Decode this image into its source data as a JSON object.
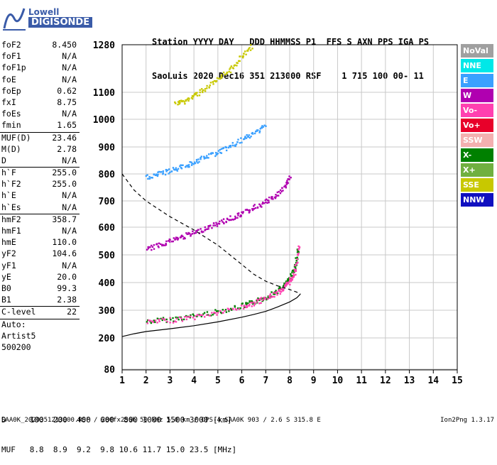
{
  "logo": {
    "line1": "Lowell",
    "line2": "DIGISONDE"
  },
  "header": {
    "line1": "Station YYYY DAY   DDD HHMMSS P1  FFS S AXN PPS IGA PS",
    "line2": "SaoLuis 2020 Dec16 351 213000 RSF    1 715 100 00- 11"
  },
  "params": [
    {
      "k": "foF2",
      "v": "8.450"
    },
    {
      "k": "foF1",
      "v": "N/A"
    },
    {
      "k": "foF1p",
      "v": "N/A"
    },
    {
      "k": "foE",
      "v": "N/A"
    },
    {
      "k": "foEp",
      "v": "0.62"
    },
    {
      "k": "fxI",
      "v": "8.75"
    },
    {
      "k": "foEs",
      "v": "N/A"
    },
    {
      "k": "fmin",
      "v": "1.65"
    },
    {
      "k": "MUF(D)",
      "v": "23.46",
      "sep": true
    },
    {
      "k": "M(D)",
      "v": "2.78"
    },
    {
      "k": "D",
      "v": "N/A"
    },
    {
      "k": "h`F",
      "v": "255.0",
      "sep": true
    },
    {
      "k": "h`F2",
      "v": "255.0"
    },
    {
      "k": "h`E",
      "v": "N/A"
    },
    {
      "k": "h`Es",
      "v": "N/A"
    },
    {
      "k": "hmF2",
      "v": "358.7",
      "sep": true
    },
    {
      "k": "hmF1",
      "v": "N/A"
    },
    {
      "k": "hmE",
      "v": "110.0"
    },
    {
      "k": "yF2",
      "v": "104.6"
    },
    {
      "k": "yF1",
      "v": "N/A"
    },
    {
      "k": "yE",
      "v": "20.0"
    },
    {
      "k": "B0",
      "v": "99.3"
    },
    {
      "k": "B1",
      "v": "2.38"
    },
    {
      "k": "C-level",
      "v": "22",
      "sep": true
    },
    {
      "k": "Auto:",
      "v": "",
      "sep": true
    },
    {
      "k": "Artist5",
      "v": ""
    },
    {
      "k": "500200",
      "v": ""
    }
  ],
  "legend": [
    {
      "label": "NoVal",
      "color": "#a0a0a0"
    },
    {
      "label": "NNE",
      "color": "#00e8e8"
    },
    {
      "label": "E",
      "color": "#3aa0ff"
    },
    {
      "label": "W",
      "color": "#b000b0"
    },
    {
      "label": "Vo-",
      "color": "#ff40b0"
    },
    {
      "label": "Vo+",
      "color": "#e8002a"
    },
    {
      "label": "SSW",
      "color": "#f4b0b0"
    },
    {
      "label": "X-",
      "color": "#008000"
    },
    {
      "label": "X+",
      "color": "#70b040"
    },
    {
      "label": "SSE",
      "color": "#c8c800"
    },
    {
      "label": "NNW",
      "color": "#1010c0"
    }
  ],
  "muf_table": {
    "line1": "D     100  200  400  600  800 1000 1500 3000 [km]",
    "line2": "MUF   8.8  8.9  9.2  9.8 10.6 11.7 15.0 23.5 [MHz]"
  },
  "footer": "SAA0K_2020351213000.RSF / 280fx256h 50 kHz 5.0 km / DPS-4 SAA0K 903 / 2.6 S 315.8 E",
  "version": "Ion2Png 1.3.17",
  "chart_data": {
    "type": "scatter",
    "title": "",
    "xlabel": "",
    "ylabel": "",
    "xlim": [
      1,
      15
    ],
    "ylim": [
      80,
      1280
    ],
    "x_ticks": [
      "1",
      "2",
      "3",
      "4",
      "5",
      "6",
      "7",
      "8",
      "9",
      "10",
      "11",
      "12",
      "13",
      "14",
      "15"
    ],
    "y_ticks": [
      "80",
      "200",
      "300",
      "400",
      "500",
      "600",
      "700",
      "800",
      "900",
      "1000",
      "1100",
      "1280"
    ],
    "y_tick_values": [
      80,
      200,
      300,
      400,
      500,
      600,
      700,
      800,
      900,
      1000,
      1100,
      1280
    ],
    "grid": true,
    "series": [
      {
        "name": "X-",
        "color": "#008000",
        "trace": [
          [
            2.0,
            262
          ],
          [
            3.0,
            270
          ],
          [
            4.0,
            282
          ],
          [
            5.0,
            298
          ],
          [
            6.0,
            318
          ],
          [
            6.5,
            332
          ],
          [
            7.0,
            350
          ],
          [
            7.5,
            375
          ],
          [
            7.8,
            395
          ],
          [
            8.0,
            420
          ],
          [
            8.2,
            460
          ],
          [
            8.35,
            530
          ]
        ]
      },
      {
        "name": "Vo-",
        "color": "#ff40b0",
        "trace": [
          [
            2.0,
            258
          ],
          [
            3.0,
            266
          ],
          [
            4.0,
            278
          ],
          [
            5.0,
            294
          ],
          [
            6.0,
            314
          ],
          [
            6.5,
            328
          ],
          [
            7.0,
            346
          ],
          [
            7.5,
            368
          ],
          [
            7.8,
            388
          ],
          [
            8.0,
            410
          ],
          [
            8.2,
            445
          ],
          [
            8.4,
            545
          ]
        ]
      },
      {
        "name": "W",
        "color": "#b000b0",
        "trace": [
          [
            2.0,
            522
          ],
          [
            2.5,
            538
          ],
          [
            3.0,
            554
          ],
          [
            3.5,
            568
          ],
          [
            4.0,
            582
          ],
          [
            4.5,
            600
          ],
          [
            5.0,
            618
          ],
          [
            5.5,
            636
          ],
          [
            6.0,
            655
          ],
          [
            6.5,
            678
          ],
          [
            7.0,
            700
          ],
          [
            7.4,
            722
          ],
          [
            7.8,
            760
          ],
          [
            8.0,
            790
          ]
        ]
      },
      {
        "name": "E",
        "color": "#3aa0ff",
        "trace": [
          [
            2.0,
            790
          ],
          [
            2.5,
            802
          ],
          [
            3.0,
            815
          ],
          [
            3.5,
            830
          ],
          [
            4.0,
            846
          ],
          [
            4.5,
            866
          ],
          [
            5.0,
            884
          ],
          [
            5.5,
            904
          ],
          [
            6.0,
            928
          ],
          [
            6.5,
            952
          ],
          [
            7.0,
            986
          ]
        ]
      },
      {
        "name": "SSE",
        "color": "#c8c800",
        "trace": [
          [
            3.2,
            1060
          ],
          [
            3.6,
            1070
          ],
          [
            4.0,
            1090
          ],
          [
            4.5,
            1120
          ],
          [
            5.0,
            1150
          ],
          [
            5.5,
            1190
          ],
          [
            6.0,
            1240
          ],
          [
            6.4,
            1280
          ]
        ]
      }
    ],
    "profile_curve": [
      [
        1.0,
        205
      ],
      [
        1.5,
        215
      ],
      [
        2.0,
        223
      ],
      [
        3.0,
        233
      ],
      [
        4.0,
        244
      ],
      [
        5.0,
        258
      ],
      [
        6.0,
        275
      ],
      [
        6.5,
        285
      ],
      [
        7.0,
        296
      ],
      [
        7.5,
        312
      ],
      [
        8.0,
        330
      ],
      [
        8.3,
        345
      ],
      [
        8.45,
        358.7
      ]
    ],
    "muf_curve": [
      [
        1.0,
        800
      ],
      [
        1.5,
        740
      ],
      [
        2.0,
        700
      ],
      [
        3.0,
        640
      ],
      [
        4.0,
        590
      ],
      [
        5.0,
        535
      ],
      [
        6.0,
        465
      ],
      [
        6.5,
        430
      ],
      [
        7.0,
        405
      ],
      [
        7.5,
        388
      ],
      [
        8.0,
        375
      ],
      [
        8.3,
        365
      ],
      [
        8.45,
        358.7
      ]
    ]
  }
}
